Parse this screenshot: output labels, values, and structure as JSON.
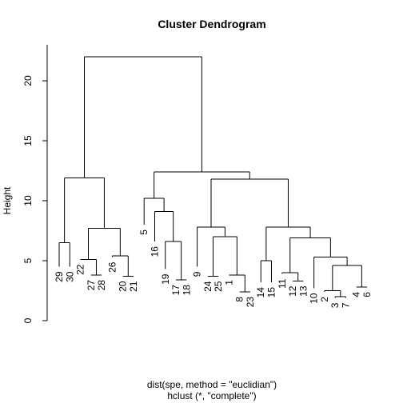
{
  "chart_data": {
    "type": "dendrogram",
    "title": "Cluster Dendrogram",
    "ylabel": "Height",
    "xlabel_line1": "dist(spe, method = \"euclidian\")",
    "xlabel_line2": "hclust (*, \"complete\")",
    "ylim": [
      0,
      23
    ],
    "yticks": [
      0,
      5,
      10,
      15,
      20
    ],
    "order": [
      "29",
      "30",
      "22",
      "27",
      "28",
      "26",
      "20",
      "21",
      "5",
      "16",
      "19",
      "17",
      "18",
      "9",
      "24",
      "25",
      "1",
      "8",
      "23",
      "14",
      "15",
      "11",
      "12",
      "13",
      "10",
      "2",
      "3",
      "7",
      "4",
      "6"
    ],
    "labels_shown_at_height": {
      "29": 4.5,
      "30": 4.5,
      "22": 5.1,
      "27": 3.8,
      "28": 3.8,
      "26": 5.3,
      "20": 3.7,
      "21": 3.7,
      "5": 8.0,
      "16": 6.6,
      "19": 4.3,
      "17": 3.4,
      "18": 3.4,
      "9": 4.5,
      "24": 3.7,
      "25": 3.7,
      "1": 3.8,
      "8": 2.4,
      "23": 2.4,
      "14": 3.2,
      "15": 3.2,
      "11": 3.9,
      "12": 3.3,
      "13": 3.3,
      "10": 2.7,
      "2": 2.4,
      "3": 1.9,
      "7": 1.9,
      "4": 2.8,
      "6": 2.8
    },
    "merges": [
      {
        "left": "29",
        "right": "30",
        "height": 6.5
      },
      {
        "left": "20",
        "right": "21",
        "height": 3.7
      },
      {
        "left": "26",
        "right": [
          "20",
          "21"
        ],
        "height": 5.4
      },
      {
        "left": "27",
        "right": "28",
        "height": 3.8
      },
      {
        "left": "22",
        "right": [
          "27",
          "28"
        ],
        "height": 5.1
      },
      {
        "left": [
          "22",
          "27",
          "28"
        ],
        "right": [
          "26",
          "20",
          "21"
        ],
        "height": 7.7
      },
      {
        "left": [
          "29",
          "30"
        ],
        "right": [
          "22",
          "27",
          "28",
          "26",
          "20",
          "21"
        ],
        "height": 11.9
      },
      {
        "left": "17",
        "right": "18",
        "height": 3.4
      },
      {
        "left": "19",
        "right": [
          "17",
          "18"
        ],
        "height": 6.6
      },
      {
        "left": "16",
        "right": [
          "19",
          "17",
          "18"
        ],
        "height": 9.1
      },
      {
        "left": "5",
        "right": [
          "16",
          "19",
          "17",
          "18"
        ],
        "height": 10.2
      },
      {
        "left": "24",
        "right": "25",
        "height": 3.7
      },
      {
        "left": "8",
        "right": "23",
        "height": 2.4
      },
      {
        "left": "1",
        "right": [
          "8",
          "23"
        ],
        "height": 3.8
      },
      {
        "left": [
          "24",
          "25"
        ],
        "right": [
          "1",
          "8",
          "23"
        ],
        "height": 7.0
      },
      {
        "left": "9",
        "right": [
          "24",
          "25",
          "1",
          "8",
          "23"
        ],
        "height": 7.8
      },
      {
        "left": "14",
        "right": "15",
        "height": 5.0
      },
      {
        "left": "12",
        "right": "13",
        "height": 3.3
      },
      {
        "left": "11",
        "right": [
          "12",
          "13"
        ],
        "height": 4.0
      },
      {
        "left": "3",
        "right": "7",
        "height": 2.0
      },
      {
        "left": "2",
        "right": [
          "3",
          "7"
        ],
        "height": 2.5
      },
      {
        "left": "4",
        "right": "6",
        "height": 2.8
      },
      {
        "left": [
          "2",
          "3",
          "7"
        ],
        "right": [
          "4",
          "6"
        ],
        "height": 4.6
      },
      {
        "left": "10",
        "right": [
          "2",
          "3",
          "7",
          "4",
          "6"
        ],
        "height": 5.3
      },
      {
        "left": [
          "11",
          "12",
          "13"
        ],
        "right": [
          "10",
          "2",
          "3",
          "7",
          "4",
          "6"
        ],
        "height": 6.9
      },
      {
        "left": [
          "14",
          "15"
        ],
        "right": [
          "11",
          "12",
          "13",
          "10",
          "2",
          "3",
          "7",
          "4",
          "6"
        ],
        "height": 7.8
      },
      {
        "left": [
          "9",
          "24",
          "25",
          "1",
          "8",
          "23"
        ],
        "right": [
          "14",
          "15",
          "11",
          "12",
          "13",
          "10",
          "2",
          "3",
          "7",
          "4",
          "6"
        ],
        "height": 11.8
      },
      {
        "left": [
          "5",
          "16",
          "19",
          "17",
          "18"
        ],
        "right": [
          "9",
          "24",
          "25",
          "1",
          "8",
          "23",
          "14",
          "15",
          "11",
          "12",
          "13",
          "10",
          "2",
          "3",
          "7",
          "4",
          "6"
        ],
        "height": 12.4
      },
      {
        "left": [
          "29",
          "30",
          "22",
          "27",
          "28",
          "26",
          "20",
          "21"
        ],
        "right": [
          "5",
          "16",
          "19",
          "17",
          "18",
          "9",
          "24",
          "25",
          "1",
          "8",
          "23",
          "14",
          "15",
          "11",
          "12",
          "13",
          "10",
          "2",
          "3",
          "7",
          "4",
          "6"
        ],
        "height": 22.0
      }
    ],
    "grid": false,
    "legend": "none"
  }
}
